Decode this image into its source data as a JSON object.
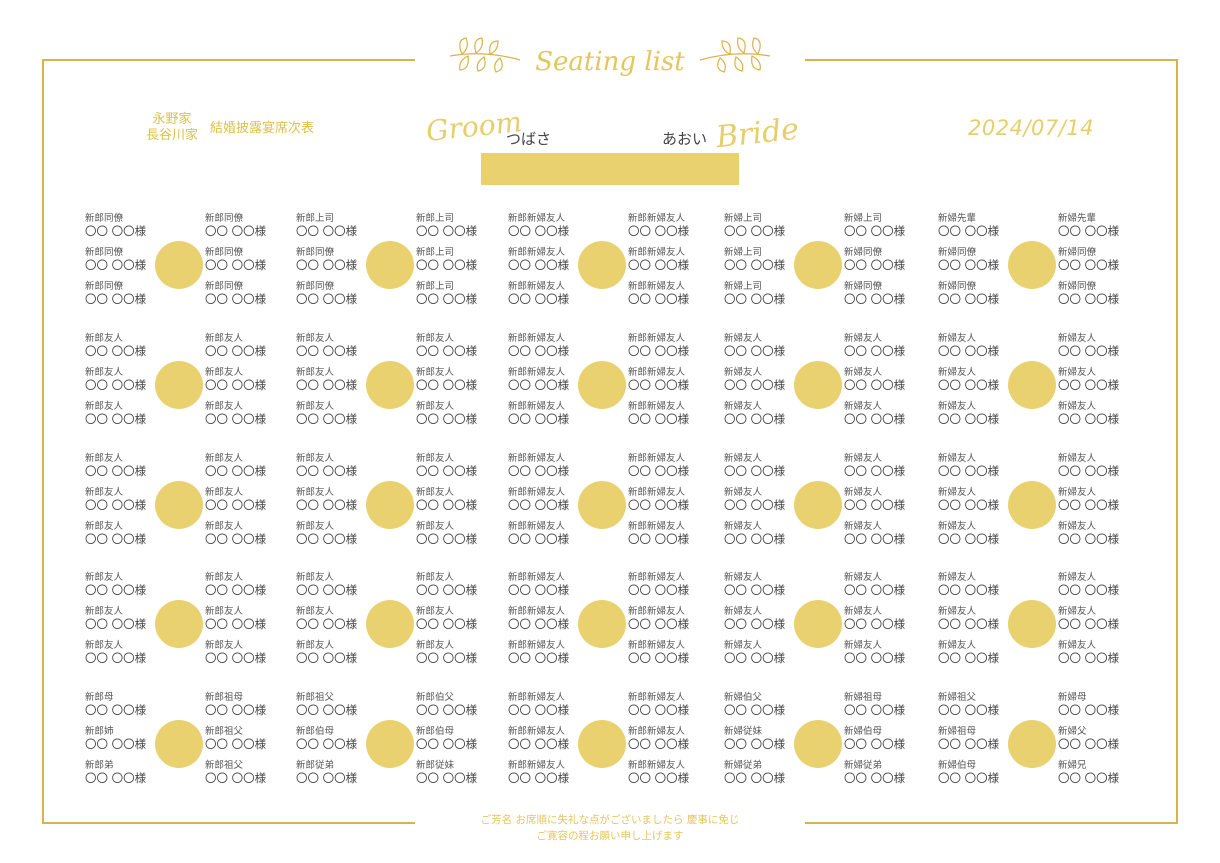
{
  "header": {
    "title_script": "Seating list",
    "family_groom": "永野家",
    "family_bride": "長谷川家",
    "event_title": "結婚披露宴席次表",
    "groom_label": "Groom",
    "groom_name": "つばさ",
    "bride_label": "Bride",
    "bride_name": "あおい",
    "date": "2024/07/14"
  },
  "colors": {
    "accent": "#e9d170",
    "frame": "#d9b24a",
    "text": "#555555"
  },
  "tables": [
    [
      [
        [
          "新郎同僚",
          "新郎同僚",
          "新郎同僚"
        ],
        [
          "新郎同僚",
          "新郎同僚",
          "新郎同僚"
        ]
      ],
      [
        [
          "新郎上司",
          "新郎同僚",
          "新郎同僚"
        ],
        [
          "新郎上司",
          "新郎上司",
          "新郎上司"
        ]
      ],
      [
        [
          "新郎新婦友人",
          "新郎新婦友人",
          "新郎新婦友人"
        ],
        [
          "新郎新婦友人",
          "新郎新婦友人",
          "新郎新婦友人"
        ]
      ],
      [
        [
          "新婦上司",
          "新婦上司",
          "新婦上司"
        ],
        [
          "新婦上司",
          "新婦同僚",
          "新婦同僚"
        ]
      ],
      [
        [
          "新婦先輩",
          "新婦同僚",
          "新婦同僚"
        ],
        [
          "新婦先輩",
          "新婦同僚",
          "新婦同僚"
        ]
      ]
    ],
    [
      [
        [
          "新郎友人",
          "新郎友人",
          "新郎友人"
        ],
        [
          "新郎友人",
          "新郎友人",
          "新郎友人"
        ]
      ],
      [
        [
          "新郎友人",
          "新郎友人",
          "新郎友人"
        ],
        [
          "新郎友人",
          "新郎友人",
          "新郎友人"
        ]
      ],
      [
        [
          "新郎新婦友人",
          "新郎新婦友人",
          "新郎新婦友人"
        ],
        [
          "新郎新婦友人",
          "新郎新婦友人",
          "新郎新婦友人"
        ]
      ],
      [
        [
          "新婦友人",
          "新婦友人",
          "新婦友人"
        ],
        [
          "新婦友人",
          "新婦友人",
          "新婦友人"
        ]
      ],
      [
        [
          "新婦友人",
          "新婦友人",
          "新婦友人"
        ],
        [
          "新婦友人",
          "新婦友人",
          "新婦友人"
        ]
      ]
    ],
    [
      [
        [
          "新郎友人",
          "新郎友人",
          "新郎友人"
        ],
        [
          "新郎友人",
          "新郎友人",
          "新郎友人"
        ]
      ],
      [
        [
          "新郎友人",
          "新郎友人",
          "新郎友人"
        ],
        [
          "新郎友人",
          "新郎友人",
          "新郎友人"
        ]
      ],
      [
        [
          "新郎新婦友人",
          "新郎新婦友人",
          "新郎新婦友人"
        ],
        [
          "新郎新婦友人",
          "新郎新婦友人",
          "新郎新婦友人"
        ]
      ],
      [
        [
          "新婦友人",
          "新婦友人",
          "新婦友人"
        ],
        [
          "新婦友人",
          "新婦友人",
          "新婦友人"
        ]
      ],
      [
        [
          "新婦友人",
          "新婦友人",
          "新婦友人"
        ],
        [
          "新婦友人",
          "新婦友人",
          "新婦友人"
        ]
      ]
    ],
    [
      [
        [
          "新郎友人",
          "新郎友人",
          "新郎友人"
        ],
        [
          "新郎友人",
          "新郎友人",
          "新郎友人"
        ]
      ],
      [
        [
          "新郎友人",
          "新郎友人",
          "新郎友人"
        ],
        [
          "新郎友人",
          "新郎友人",
          "新郎友人"
        ]
      ],
      [
        [
          "新郎新婦友人",
          "新郎新婦友人",
          "新郎新婦友人"
        ],
        [
          "新郎新婦友人",
          "新郎新婦友人",
          "新郎新婦友人"
        ]
      ],
      [
        [
          "新婦友人",
          "新婦友人",
          "新婦友人"
        ],
        [
          "新婦友人",
          "新婦友人",
          "新婦友人"
        ]
      ],
      [
        [
          "新婦友人",
          "新婦友人",
          "新婦友人"
        ],
        [
          "新婦友人",
          "新婦友人",
          "新婦友人"
        ]
      ]
    ],
    [
      [
        [
          "新郎母",
          "新郎姉",
          "新郎弟"
        ],
        [
          "新郎祖母",
          "新郎祖父",
          "新郎祖父"
        ]
      ],
      [
        [
          "新郎祖父",
          "新郎伯母",
          "新郎従弟"
        ],
        [
          "新郎伯父",
          "新郎伯母",
          "新郎従妹"
        ]
      ],
      [
        [
          "新郎新婦友人",
          "新郎新婦友人",
          "新郎新婦友人"
        ],
        [
          "新郎新婦友人",
          "新郎新婦友人",
          "新郎新婦友人"
        ]
      ],
      [
        [
          "新婦伯父",
          "新婦従妹",
          "新婦従弟"
        ],
        [
          "新婦祖母",
          "新婦伯母",
          "新婦従弟"
        ]
      ],
      [
        [
          "新婦祖父",
          "新婦祖母",
          "新婦伯母"
        ],
        [
          "新婦母",
          "新婦父",
          "新婦兄"
        ]
      ]
    ]
  ],
  "guest_placeholder": "〇〇 〇〇様",
  "footer": {
    "line1": "ご芳名 お席順に失礼な点がございましたら 慶事に免じ",
    "line2": "ご寛容の程お願い申し上げます"
  }
}
